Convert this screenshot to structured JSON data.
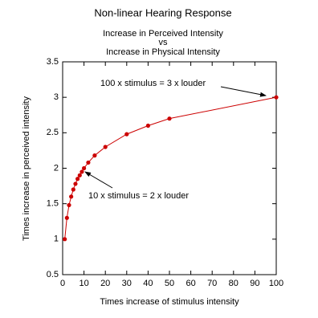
{
  "chart_data": {
    "type": "line",
    "title": "Non-linear Hearing Response",
    "subtitle": [
      "Increase in Perceived Intensity",
      "vs",
      "Increase in Physical Intensity"
    ],
    "x_label": "Times increase of stimulus intensity",
    "y_label": "Times increase in perceived intensity",
    "x": [
      1,
      2,
      3,
      4,
      5,
      6,
      7,
      8,
      9,
      10,
      12,
      15,
      20,
      30,
      40,
      50,
      100
    ],
    "series": [
      {
        "name": "Perceived intensity",
        "color": "#cc0000",
        "values": [
          1,
          1.3,
          1.48,
          1.6,
          1.7,
          1.78,
          1.85,
          1.9,
          1.95,
          2,
          2.08,
          2.18,
          2.3,
          2.48,
          2.6,
          2.7,
          3
        ]
      }
    ],
    "xlim": [
      0,
      100
    ],
    "xticks": [
      0,
      10,
      20,
      30,
      40,
      50,
      60,
      70,
      80,
      90,
      100
    ],
    "ylim": [
      0.5,
      3.5
    ],
    "yticks": [
      0.5,
      1,
      1.5,
      2,
      2.5,
      3,
      3.5
    ],
    "grid": false,
    "annotations": [
      "100 x stimulus = 3 x louder",
      "10 x stimulus = 2 x louder"
    ]
  }
}
